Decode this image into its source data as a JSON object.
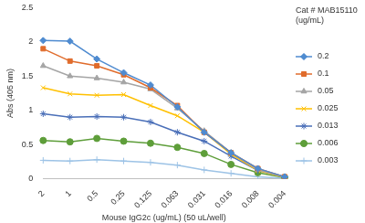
{
  "chart_data": {
    "type": "line",
    "x_label": "Mouse IgG2c (ug/mL) (50 uL/well)",
    "y_label": "Abs (405 nm)",
    "legend_title": [
      "Cat # MAB15110",
      "(ug/mL)"
    ],
    "categories": [
      "2",
      "1",
      "0.5",
      "0.25",
      "0.125",
      "0.063",
      "0.031",
      "0.016",
      "0.008",
      "0.004"
    ],
    "series": [
      {
        "name": "0.2",
        "color": "#4f8bd0",
        "marker": "diamond",
        "values": [
          2.02,
          2.01,
          1.75,
          1.55,
          1.37,
          1.05,
          0.68,
          0.38,
          0.15,
          0.03
        ]
      },
      {
        "name": "0.1",
        "color": "#e06c2c",
        "marker": "square",
        "values": [
          1.9,
          1.72,
          1.65,
          1.52,
          1.33,
          1.07,
          0.68,
          0.38,
          0.15,
          0.03
        ]
      },
      {
        "name": "0.05",
        "color": "#a5a5a5",
        "marker": "triangle",
        "values": [
          1.65,
          1.5,
          1.47,
          1.41,
          1.31,
          1.03,
          0.7,
          0.38,
          0.13,
          0.02
        ]
      },
      {
        "name": "0.025",
        "color": "#ffc000",
        "marker": "x",
        "values": [
          1.33,
          1.24,
          1.22,
          1.23,
          1.07,
          0.92,
          0.68,
          0.36,
          0.12,
          0.02
        ]
      },
      {
        "name": "0.013",
        "color": "#4a6fb8",
        "marker": "star",
        "values": [
          0.95,
          0.9,
          0.91,
          0.9,
          0.83,
          0.68,
          0.55,
          0.33,
          0.12,
          0.03
        ]
      },
      {
        "name": "0.006",
        "color": "#5e9e3a",
        "marker": "circle",
        "values": [
          0.56,
          0.54,
          0.59,
          0.55,
          0.52,
          0.46,
          0.37,
          0.21,
          0.09,
          0.02
        ]
      },
      {
        "name": "0.003",
        "color": "#9dc3e6",
        "marker": "plus",
        "values": [
          0.27,
          0.26,
          0.28,
          0.26,
          0.24,
          0.2,
          0.13,
          0.08,
          0.03,
          0.01
        ]
      }
    ],
    "ylim": [
      0,
      2.5
    ],
    "yticks": [
      0,
      0.5,
      1,
      1.5,
      2,
      2.5
    ],
    "grid": false,
    "legend": "right"
  }
}
